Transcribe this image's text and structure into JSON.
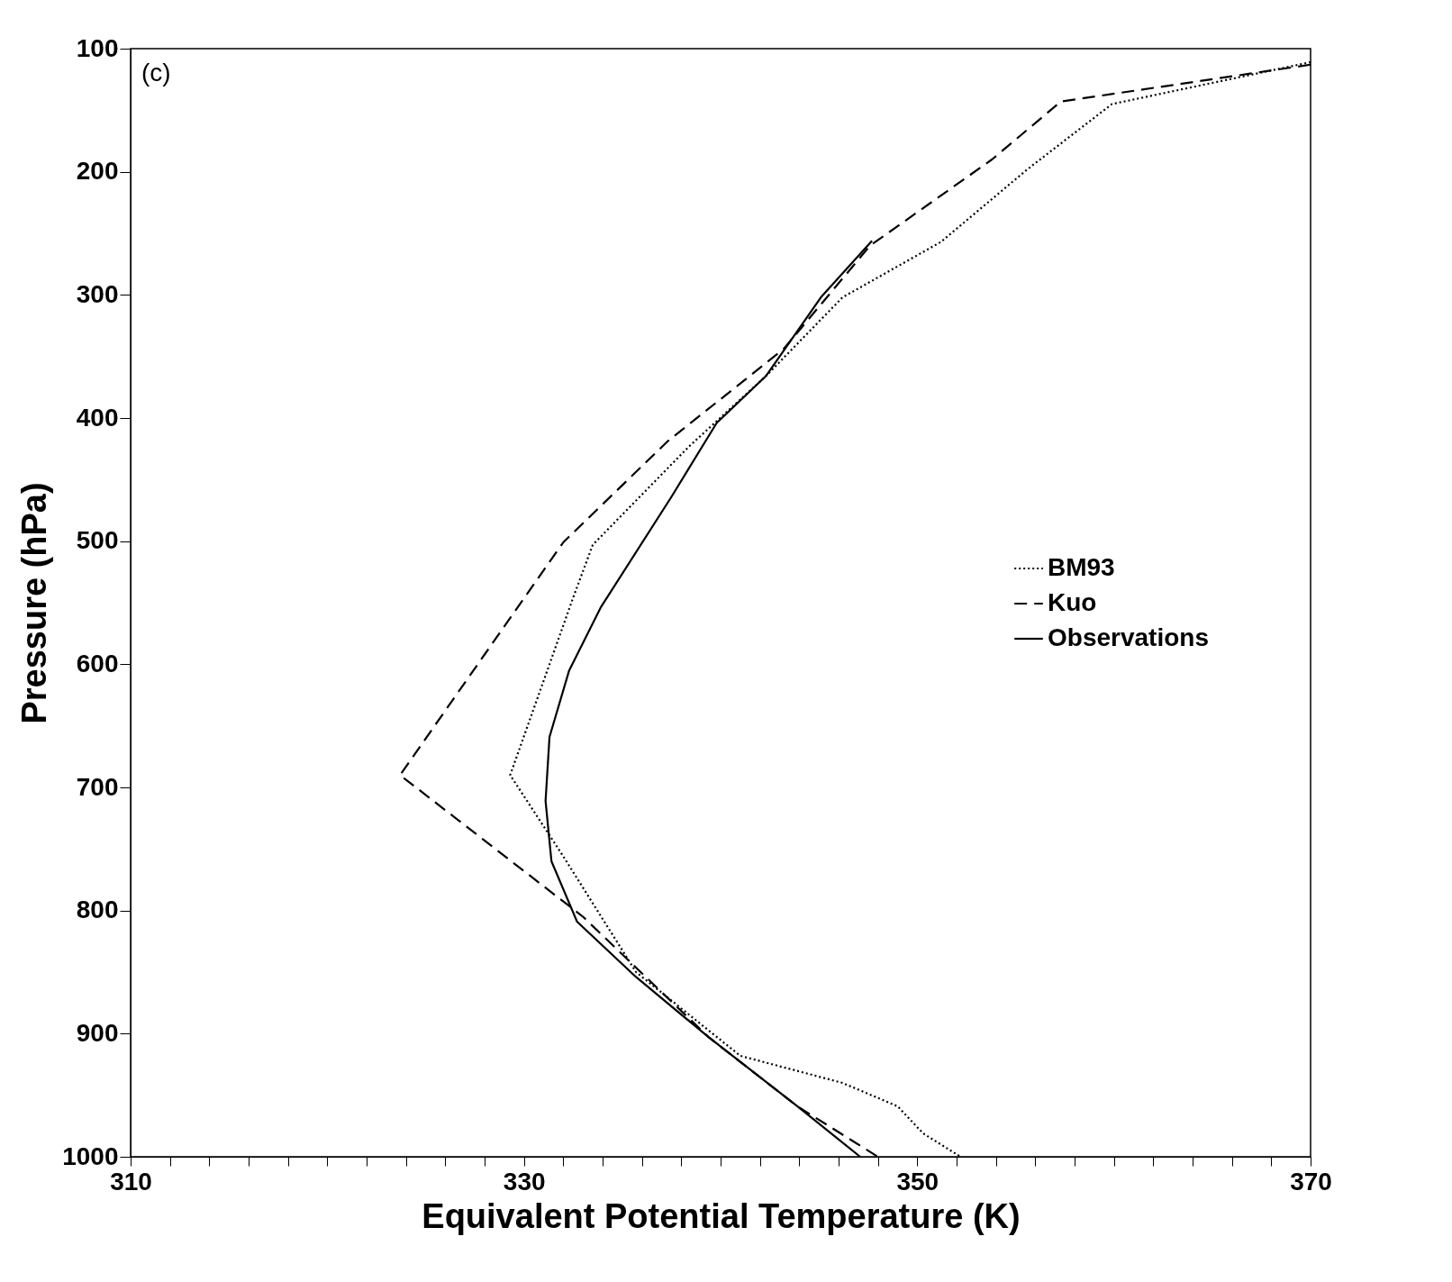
{
  "chart_data": {
    "type": "line",
    "xlabel": "Equivalent Potential Temperature (K)",
    "ylabel": "Pressure (hPa)",
    "annotations": [
      "(c)"
    ],
    "xlim": [
      310,
      370
    ],
    "xticks": [
      310,
      {
        "value": 312,
        "label": null
      },
      {
        "value": 314,
        "label": null
      },
      {
        "value": 316,
        "label": null
      },
      {
        "value": 318,
        "label": null
      },
      {
        "value": 320,
        "label": null
      },
      {
        "value": 322,
        "label": null
      },
      {
        "value": 324,
        "label": null
      },
      {
        "value": 326,
        "label": null
      },
      {
        "value": 328,
        "label": null
      },
      330,
      {
        "value": 332,
        "label": null
      },
      {
        "value": 334,
        "label": null
      },
      {
        "value": 336,
        "label": null
      },
      {
        "value": 338,
        "label": null
      },
      {
        "value": 340,
        "label": null
      },
      {
        "value": 342,
        "label": null
      },
      {
        "value": 344,
        "label": null
      },
      {
        "value": 346,
        "label": null
      },
      {
        "value": 348,
        "label": null
      },
      350,
      {
        "value": 352,
        "label": null
      },
      {
        "value": 354,
        "label": null
      },
      {
        "value": 356,
        "label": null
      },
      {
        "value": 358,
        "label": null
      },
      {
        "value": 360,
        "label": null
      },
      {
        "value": 362,
        "label": null
      },
      {
        "value": 364,
        "label": null
      },
      {
        "value": 366,
        "label": null
      },
      {
        "value": 368,
        "label": null
      },
      370
    ],
    "ylim": [
      1000,
      100
    ],
    "yticks": [
      100,
      200,
      300,
      400,
      500,
      600,
      700,
      800,
      900,
      1000
    ],
    "grid": false,
    "legend": "right",
    "marker": "none",
    "series": [
      {
        "name": "BM93",
        "color": "#000000",
        "line_style": "dotted",
        "x": [
          370,
          359.9,
          355.6,
          351.2,
          346.2,
          342.3,
          338.4,
          333.5,
          332.5,
          329.3,
          332.0,
          335.7,
          341.0,
          346.2,
          349.0,
          350.3,
          352.2
        ],
        "values": [
          111,
          145,
          198,
          257,
          302,
          366,
          423,
          503,
          546,
          690,
          756,
          850,
          918,
          940,
          959,
          981,
          1000
        ]
      },
      {
        "name": "Kuo",
        "color": "#000000",
        "line_style": "dashed",
        "x": [
          370,
          357.3,
          353.8,
          347.6,
          343.2,
          337.3,
          332.0,
          323.7,
          333.0,
          339.4,
          343.9,
          348.0
        ],
        "values": [
          113,
          143,
          190,
          260,
          344,
          419,
          501,
          690,
          805,
          903,
          959,
          1000
        ]
      },
      {
        "name": "Observations",
        "color": "#000000",
        "line_style": "solid",
        "x": [
          347.7,
          345.1,
          342.3,
          339.8,
          337.5,
          333.9,
          332.3,
          331.3,
          331.1,
          331.4,
          332.7,
          335.7,
          339.4,
          343.9,
          347.1
        ],
        "values": [
          256,
          302,
          366,
          404,
          464,
          554,
          605,
          659,
          711,
          760,
          809,
          854,
          903,
          959,
          1000
        ]
      }
    ]
  }
}
